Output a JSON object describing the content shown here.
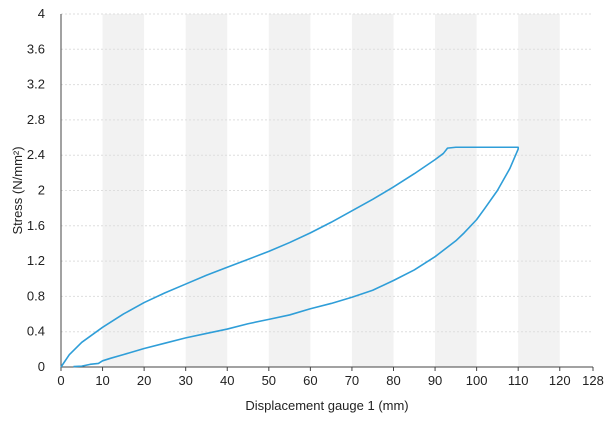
{
  "chart_data": {
    "type": "line",
    "title": "",
    "xlabel": "Displacement gauge 1 (mm)",
    "ylabel": "Stress (N/mm²)",
    "xlim": [
      0,
      128
    ],
    "ylim": [
      0,
      4
    ],
    "x_ticks": [
      0,
      10,
      20,
      30,
      40,
      50,
      60,
      70,
      80,
      90,
      100,
      110,
      120,
      128
    ],
    "y_ticks": [
      "0",
      "0.4",
      "0.8",
      "1.2",
      "1.6",
      "2",
      "2.4",
      "2.8",
      "3.2",
      "3.6",
      "4"
    ],
    "y_tick_values": [
      0,
      0.4,
      0.8,
      1.2,
      1.6,
      2.0,
      2.4,
      2.8,
      3.2,
      3.6,
      4.0
    ],
    "grid": "horizontal",
    "alternating_bands": true,
    "legend": "none",
    "series": [
      {
        "color": "#2f9ed8",
        "x": [
          0,
          2,
          5,
          10,
          15,
          20,
          25,
          30,
          35,
          40,
          45,
          50,
          55,
          60,
          65,
          70,
          75,
          80,
          85,
          90,
          92,
          93,
          95,
          100,
          105,
          108,
          110,
          110,
          108,
          105,
          102,
          100,
          97,
          95,
          90,
          85,
          80,
          75,
          70,
          65,
          60,
          55,
          50,
          45,
          40,
          35,
          30,
          25,
          20,
          15,
          12,
          10,
          9,
          7,
          5,
          3
        ],
        "y": [
          0,
          0.14,
          0.28,
          0.45,
          0.6,
          0.73,
          0.84,
          0.94,
          1.04,
          1.13,
          1.22,
          1.31,
          1.41,
          1.52,
          1.64,
          1.77,
          1.9,
          2.04,
          2.19,
          2.35,
          2.42,
          2.48,
          2.49,
          2.49,
          2.49,
          2.49,
          2.49,
          2.47,
          2.25,
          2.0,
          1.8,
          1.67,
          1.52,
          1.43,
          1.25,
          1.1,
          0.98,
          0.87,
          0.79,
          0.72,
          0.66,
          0.59,
          0.54,
          0.49,
          0.43,
          0.38,
          0.33,
          0.27,
          0.21,
          0.14,
          0.1,
          0.07,
          0.04,
          0.03,
          0.01,
          0.005
        ]
      }
    ]
  }
}
